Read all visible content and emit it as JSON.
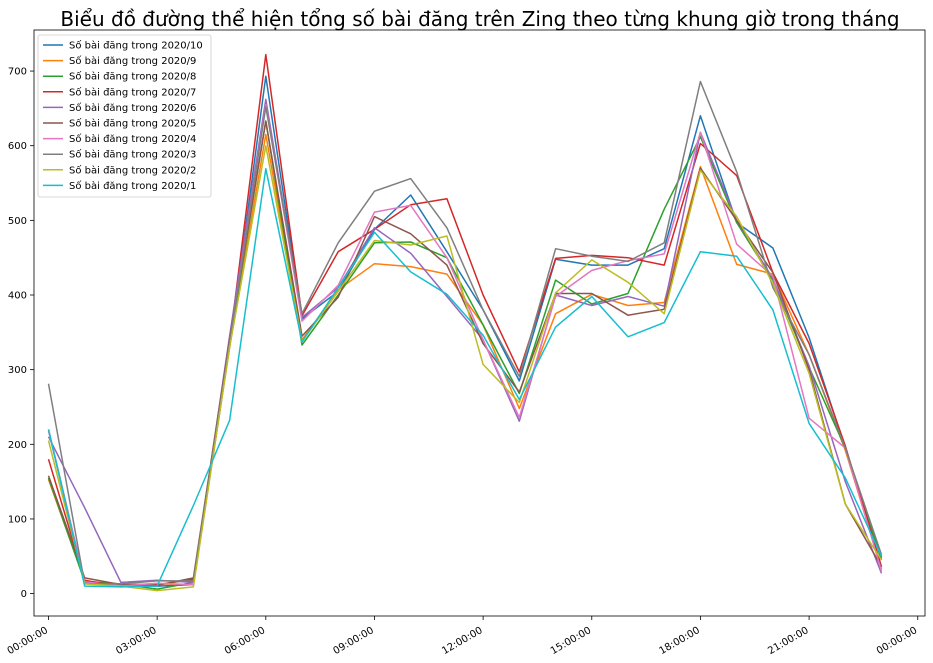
{
  "chart_data": {
    "type": "line",
    "title": "Biểu đồ đường thể hiện tổng số bài đăng trên Zing theo từng khung giờ trong tháng",
    "xlabel": "",
    "ylabel": "",
    "x": [
      0,
      1,
      2,
      3,
      4,
      5,
      6,
      7,
      8,
      9,
      10,
      11,
      12,
      13,
      14,
      15,
      16,
      17,
      18,
      19,
      20,
      21,
      22,
      23
    ],
    "xlim": [
      -0.4,
      24.2
    ],
    "xticks": [
      {
        "value": 0,
        "label": "00:00:00"
      },
      {
        "value": 3,
        "label": "03:00:00"
      },
      {
        "value": 6,
        "label": "06:00:00"
      },
      {
        "value": 9,
        "label": "09:00:00"
      },
      {
        "value": 12,
        "label": "12:00:00"
      },
      {
        "value": 15,
        "label": "15:00:00"
      },
      {
        "value": 18,
        "label": "18:00:00"
      },
      {
        "value": 21,
        "label": "21:00:00"
      },
      {
        "value": 24,
        "label": "00:00:00"
      }
    ],
    "ylim": [
      -30,
      755
    ],
    "yticks": [
      0,
      100,
      200,
      300,
      400,
      500,
      600,
      700
    ],
    "grid": false,
    "legend_position": "top-left",
    "series": [
      {
        "name": "Số bài đăng trong 2020/10",
        "color": "#1f77b4",
        "values": [
          220,
          15,
          12,
          10,
          12,
          330,
          693,
          368,
          405,
          488,
          534,
          458,
          380,
          285,
          448,
          440,
          440,
          462,
          640,
          497,
          463,
          343,
          195,
          48
        ]
      },
      {
        "name": "Số bài đăng trong 2020/9",
        "color": "#ff7f0e",
        "values": [
          153,
          17,
          12,
          13,
          12,
          330,
          615,
          340,
          407,
          442,
          438,
          428,
          360,
          248,
          375,
          401,
          386,
          390,
          572,
          441,
          428,
          320,
          192,
          33
        ]
      },
      {
        "name": "Số bài đăng trong 2020/8",
        "color": "#2ca02c",
        "values": [
          155,
          16,
          13,
          6,
          15,
          335,
          633,
          333,
          400,
          470,
          471,
          450,
          360,
          268,
          420,
          388,
          402,
          515,
          612,
          497,
          420,
          303,
          195,
          45
        ]
      },
      {
        "name": "Số bài đăng trong 2020/7",
        "color": "#d62728",
        "values": [
          180,
          18,
          9,
          12,
          19,
          335,
          722,
          372,
          458,
          488,
          521,
          529,
          400,
          297,
          449,
          453,
          450,
          440,
          603,
          560,
          430,
          335,
          198,
          36
        ]
      },
      {
        "name": "Số bài đăng trong 2020/6",
        "color": "#9467bd",
        "values": [
          210,
          115,
          15,
          18,
          15,
          345,
          662,
          370,
          410,
          490,
          456,
          398,
          340,
          231,
          400,
          386,
          398,
          385,
          618,
          500,
          422,
          305,
          150,
          27
        ]
      },
      {
        "name": "Số bài đăng trong 2020/5",
        "color": "#8c564b",
        "values": [
          158,
          21,
          12,
          11,
          21,
          340,
          633,
          345,
          397,
          505,
          482,
          440,
          335,
          270,
          402,
          402,
          373,
          381,
          570,
          500,
          430,
          300,
          120,
          36
        ]
      },
      {
        "name": "Số bài đăng trong 2020/4",
        "color": "#e377c2",
        "values": [
          218,
          16,
          10,
          14,
          12,
          335,
          655,
          365,
          413,
          511,
          520,
          450,
          340,
          236,
          398,
          433,
          446,
          455,
          618,
          468,
          425,
          235,
          195,
          30
        ]
      },
      {
        "name": "Số bài đăng trong 2020/3",
        "color": "#7f7f7f",
        "values": [
          281,
          13,
          13,
          17,
          17,
          335,
          652,
          375,
          470,
          539,
          556,
          490,
          380,
          291,
          462,
          452,
          445,
          470,
          686,
          565,
          410,
          320,
          195,
          52
        ]
      },
      {
        "name": "Số bài đăng trong 2020/2",
        "color": "#bcbd22",
        "values": [
          205,
          13,
          10,
          4,
          9,
          330,
          600,
          338,
          405,
          473,
          467,
          479,
          307,
          256,
          403,
          447,
          417,
          375,
          567,
          505,
          415,
          295,
          120,
          45
        ]
      },
      {
        "name": "Số bài đăng trong 2020/1",
        "color": "#17becf",
        "values": [
          220,
          10,
          9,
          10,
          118,
          232,
          569,
          337,
          410,
          484,
          431,
          401,
          346,
          260,
          357,
          398,
          344,
          363,
          458,
          452,
          380,
          228,
          155,
          50
        ]
      }
    ]
  }
}
